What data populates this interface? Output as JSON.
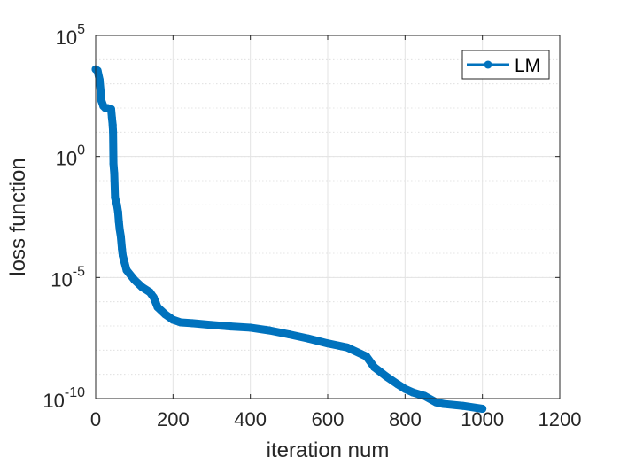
{
  "chart_data": {
    "type": "line",
    "xlabel": "iteration num",
    "ylabel": "loss function",
    "x_scale": "linear",
    "y_scale": "log",
    "xlim": [
      0,
      1200
    ],
    "ylim": [
      1e-10,
      100000.0
    ],
    "x_ticks": [
      "0",
      "200",
      "400",
      "600",
      "800",
      "1000",
      "1200"
    ],
    "y_ticks": [
      {
        "base": "10",
        "exp": "-10",
        "value": 1e-10
      },
      {
        "base": "10",
        "exp": "-5",
        "value": 1e-05
      },
      {
        "base": "10",
        "exp": "0",
        "value": 1
      },
      {
        "base": "10",
        "exp": "5",
        "value": 100000.0
      }
    ],
    "grid": true,
    "minor_grid": true,
    "legend_position": "top-right",
    "series": [
      {
        "name": "LM",
        "color": "#0072BD",
        "marker": "circle",
        "points": [
          [
            0,
            4000
          ],
          [
            5,
            3500
          ],
          [
            10,
            1500
          ],
          [
            15,
            200
          ],
          [
            20,
            120
          ],
          [
            25,
            100
          ],
          [
            30,
            100
          ],
          [
            35,
            95
          ],
          [
            40,
            90
          ],
          [
            42,
            40
          ],
          [
            44,
            20
          ],
          [
            45,
            10
          ],
          [
            46,
            0.5
          ],
          [
            48,
            0.2
          ],
          [
            50,
            0.02
          ],
          [
            52,
            0.015
          ],
          [
            55,
            0.01
          ],
          [
            58,
            0.005
          ],
          [
            60,
            0.002
          ],
          [
            62,
            0.001
          ],
          [
            65,
            0.0005
          ],
          [
            68,
            0.00015
          ],
          [
            70,
            8e-05
          ],
          [
            75,
            4e-05
          ],
          [
            80,
            2e-05
          ],
          [
            100,
            8e-06
          ],
          [
            120,
            4e-06
          ],
          [
            140,
            2.5e-06
          ],
          [
            150,
            1.5e-06
          ],
          [
            160,
            6e-07
          ],
          [
            180,
            3e-07
          ],
          [
            200,
            1.8e-07
          ],
          [
            220,
            1.4e-07
          ],
          [
            250,
            1.3e-07
          ],
          [
            300,
            1.1e-07
          ],
          [
            350,
            9.5e-08
          ],
          [
            400,
            8.5e-08
          ],
          [
            450,
            6.5e-08
          ],
          [
            500,
            4.5e-08
          ],
          [
            550,
            3e-08
          ],
          [
            600,
            1.9e-08
          ],
          [
            650,
            1.3e-08
          ],
          [
            700,
            5.5e-09
          ],
          [
            720,
            2e-09
          ],
          [
            750,
            8.5e-10
          ],
          [
            780,
            4e-10
          ],
          [
            800,
            2.5e-10
          ],
          [
            820,
            1.8e-10
          ],
          [
            850,
            1.3e-10
          ],
          [
            880,
            7e-11
          ],
          [
            900,
            6e-11
          ],
          [
            950,
            5e-11
          ],
          [
            1000,
            3.8e-11
          ]
        ]
      }
    ]
  }
}
